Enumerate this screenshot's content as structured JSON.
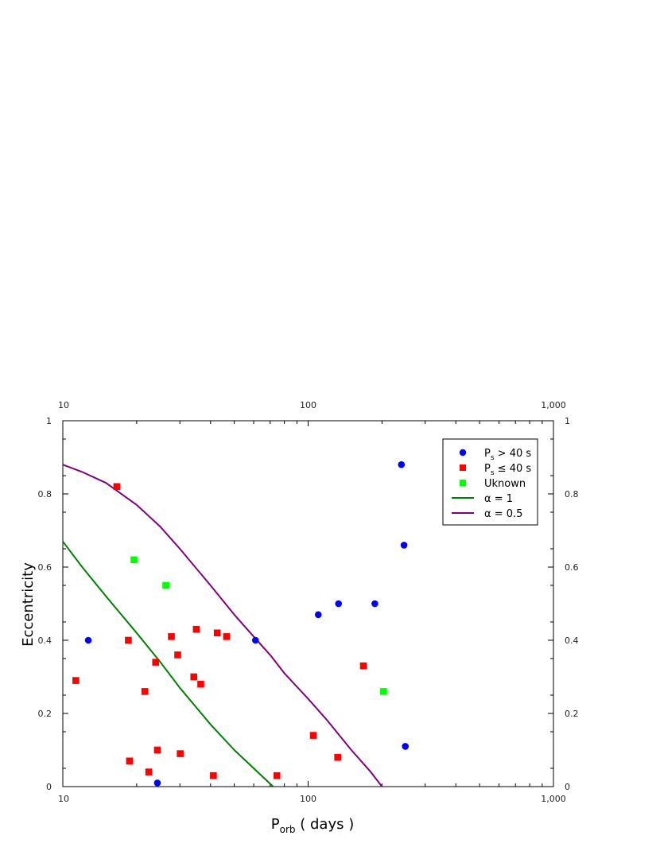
{
  "chart_data": {
    "type": "scatter",
    "title": "",
    "xlabel": {
      "main": "P",
      "sub": "orb",
      "rest": " ( days )"
    },
    "ylabel": "Eccentricity",
    "xscale": "log",
    "xlim": [
      10,
      1000
    ],
    "ylim": [
      0,
      1
    ],
    "x_ticks_major": [
      {
        "value": 10,
        "label": "10"
      },
      {
        "value": 100,
        "label": "100"
      },
      {
        "value": 1000,
        "label": "1,000"
      }
    ],
    "y_ticks_major": [
      {
        "value": 0,
        "label": "0"
      },
      {
        "value": 0.2,
        "label": "0.2"
      },
      {
        "value": 0.4,
        "label": "0.4"
      },
      {
        "value": 0.6,
        "label": "0.6"
      },
      {
        "value": 0.8,
        "label": "0.8"
      },
      {
        "value": 1,
        "label": "1"
      }
    ],
    "grid": false,
    "legend_position": "top-right",
    "series": [
      {
        "name": {
          "main": "P",
          "sub": "s",
          "rest": " > 40 s"
        },
        "marker": "circle",
        "color": "#0000ff",
        "points": [
          {
            "x": 12.7,
            "y": 0.4
          },
          {
            "x": 24.3,
            "y": 0.01
          },
          {
            "x": 61.0,
            "y": 0.4
          },
          {
            "x": 110,
            "y": 0.47
          },
          {
            "x": 133,
            "y": 0.5
          },
          {
            "x": 187,
            "y": 0.5
          },
          {
            "x": 240,
            "y": 0.88
          },
          {
            "x": 246,
            "y": 0.66
          },
          {
            "x": 249,
            "y": 0.11
          }
        ]
      },
      {
        "name": {
          "main": "P",
          "sub": "s",
          "rest": " ≤ 40 s"
        },
        "marker": "square",
        "color": "#ff0000",
        "points": [
          {
            "x": 11.3,
            "y": 0.29
          },
          {
            "x": 16.6,
            "y": 0.82
          },
          {
            "x": 18.5,
            "y": 0.4
          },
          {
            "x": 18.7,
            "y": 0.07
          },
          {
            "x": 21.6,
            "y": 0.26
          },
          {
            "x": 22.4,
            "y": 0.04
          },
          {
            "x": 23.9,
            "y": 0.34
          },
          {
            "x": 24.3,
            "y": 0.1
          },
          {
            "x": 27.7,
            "y": 0.41
          },
          {
            "x": 29.4,
            "y": 0.36
          },
          {
            "x": 30.1,
            "y": 0.09
          },
          {
            "x": 34.2,
            "y": 0.3
          },
          {
            "x": 35.0,
            "y": 0.43
          },
          {
            "x": 36.5,
            "y": 0.28
          },
          {
            "x": 41.1,
            "y": 0.03
          },
          {
            "x": 42.6,
            "y": 0.42
          },
          {
            "x": 46.5,
            "y": 0.41
          },
          {
            "x": 74.6,
            "y": 0.03
          },
          {
            "x": 105,
            "y": 0.14
          },
          {
            "x": 132,
            "y": 0.08
          },
          {
            "x": 168,
            "y": 0.33
          }
        ]
      },
      {
        "name": {
          "main": "Uknown",
          "sub": "",
          "rest": ""
        },
        "marker": "square",
        "color": "#00ff00",
        "points": [
          {
            "x": 19.5,
            "y": 0.62
          },
          {
            "x": 26.3,
            "y": 0.55
          },
          {
            "x": 203,
            "y": 0.26
          }
        ]
      },
      {
        "name": {
          "main": "α = 1",
          "sub": "",
          "rest": ""
        },
        "marker": "line",
        "color": "#008000",
        "points": [
          {
            "x": 10,
            "y": 0.67
          },
          {
            "x": 12,
            "y": 0.6
          },
          {
            "x": 15,
            "y": 0.52
          },
          {
            "x": 20,
            "y": 0.42
          },
          {
            "x": 25,
            "y": 0.34
          },
          {
            "x": 30,
            "y": 0.27
          },
          {
            "x": 40,
            "y": 0.17
          },
          {
            "x": 50,
            "y": 0.1
          },
          {
            "x": 60,
            "y": 0.05
          },
          {
            "x": 72,
            "y": 0.0
          }
        ]
      },
      {
        "name": {
          "main": "α = 0.5",
          "sub": "",
          "rest": ""
        },
        "marker": "line",
        "color": "#800080",
        "points": [
          {
            "x": 10,
            "y": 0.88
          },
          {
            "x": 12,
            "y": 0.86
          },
          {
            "x": 15,
            "y": 0.83
          },
          {
            "x": 20,
            "y": 0.77
          },
          {
            "x": 25,
            "y": 0.71
          },
          {
            "x": 30,
            "y": 0.65
          },
          {
            "x": 40,
            "y": 0.55
          },
          {
            "x": 50,
            "y": 0.47
          },
          {
            "x": 60,
            "y": 0.41
          },
          {
            "x": 70,
            "y": 0.36
          },
          {
            "x": 80,
            "y": 0.31
          },
          {
            "x": 100,
            "y": 0.24
          },
          {
            "x": 120,
            "y": 0.18
          },
          {
            "x": 150,
            "y": 0.1
          },
          {
            "x": 180,
            "y": 0.04
          },
          {
            "x": 200,
            "y": 0.0
          }
        ]
      }
    ]
  }
}
